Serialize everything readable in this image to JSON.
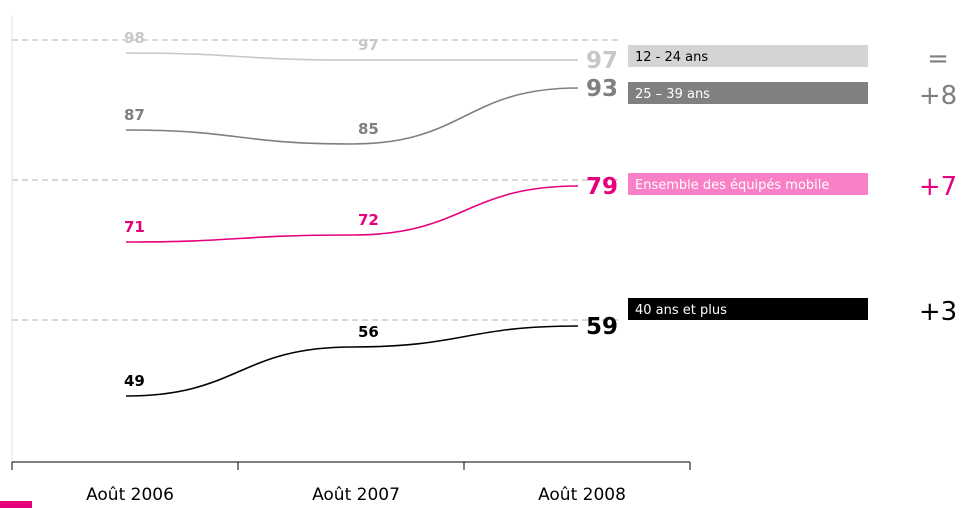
{
  "chart_data": {
    "type": "line",
    "title": "",
    "xlabel": "",
    "ylabel": "",
    "categories": [
      "Août 2006",
      "Août 2007",
      "Août 2008"
    ],
    "ylim": [
      40,
      100
    ],
    "grid": "dashed reference lines",
    "series": [
      {
        "name": "12 - 24 ans",
        "values": [
          98,
          97,
          97
        ],
        "labels": [
          "98",
          "97",
          "97"
        ],
        "color": "#c8c8c8",
        "legend_bg": "#d4d4d4",
        "legend_fg": "#000000",
        "delta": "="
      },
      {
        "name": "25 – 39 ans",
        "values": [
          87,
          85,
          93
        ],
        "labels": [
          "87",
          "85",
          "93"
        ],
        "color": "#7f7f7f",
        "legend_bg": "#808080",
        "legend_fg": "#ffffff",
        "delta": "+8"
      },
      {
        "name": "Ensemble des équipés mobile",
        "values": [
          71,
          72,
          79
        ],
        "labels": [
          "71",
          "72",
          "79"
        ],
        "color": "#e6007e",
        "legend_bg": "#f97fc6",
        "legend_fg": "#ffffff",
        "delta": "+7"
      },
      {
        "name": "40 ans et plus",
        "values": [
          49,
          56,
          59
        ],
        "labels": [
          "49",
          "56",
          "59"
        ],
        "color": "#000000",
        "legend_bg": "#000000",
        "legend_fg": "#ffffff",
        "delta": "+3"
      }
    ]
  }
}
